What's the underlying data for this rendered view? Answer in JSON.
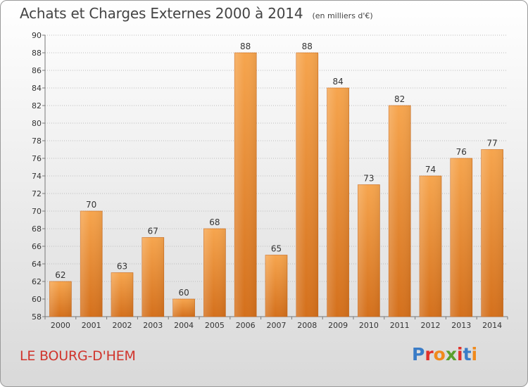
{
  "header": {
    "title": "Achats et Charges Externes 2000 à 2014",
    "subtitle": "(en milliers d'€)"
  },
  "footer": {
    "town": "LE BOURG-D'HEM",
    "logo": "Proxiti"
  },
  "colors": {
    "bar_light": "#f6a54e",
    "bar_dark": "#d4701c",
    "town": "#d0342c",
    "logo_letters": [
      "#3a7cc7",
      "#e2312b",
      "#f08a1c",
      "#5aa02c",
      "#e2312b",
      "#3a7cc7",
      "#f08a1c"
    ]
  },
  "chart_data": {
    "type": "bar",
    "title": "Achats et Charges Externes 2000 à 2014",
    "subtitle": "(en milliers d'€)",
    "xlabel": "",
    "ylabel": "",
    "categories": [
      "2000",
      "2001",
      "2002",
      "2003",
      "2004",
      "2005",
      "2006",
      "2007",
      "2008",
      "2009",
      "2010",
      "2011",
      "2012",
      "2013",
      "2014"
    ],
    "values": [
      62,
      70,
      63,
      67,
      60,
      68,
      88,
      65,
      88,
      84,
      73,
      82,
      74,
      76,
      77
    ],
    "ylim": [
      58,
      90
    ],
    "yticks": [
      58,
      60,
      62,
      64,
      66,
      68,
      70,
      72,
      74,
      76,
      78,
      80,
      82,
      84,
      86,
      88,
      90
    ],
    "grid": true,
    "legend": "none"
  }
}
